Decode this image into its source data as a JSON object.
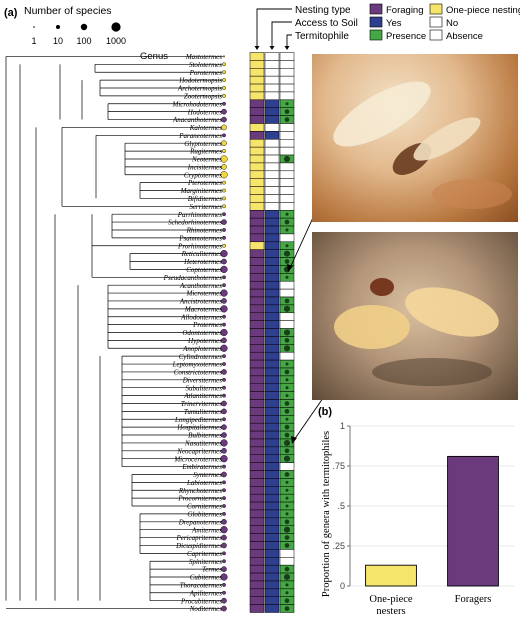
{
  "panel_a_label": "(a)",
  "panel_b_label": "(b)",
  "species_legend": {
    "title": "Number of species",
    "labels": [
      "1",
      "10",
      "100",
      "1000"
    ]
  },
  "genus_header": "Genus",
  "column_headers": [
    "Nesting type",
    "Access to Soil",
    "Termitophile"
  ],
  "key": {
    "foraging": "Foraging",
    "one_piece": "One-piece nesting",
    "yes": "Yes",
    "no": "No",
    "presence": "Presence",
    "absence": "Absence"
  },
  "colors": {
    "foraging": "#6b3a7d",
    "one_piece": "#f5e56b",
    "yes": "#2e3f8f",
    "no": "#ffffff",
    "presence": "#45a845",
    "absence": "#ffffff",
    "tip_purple": "#6b3a7d",
    "tip_yellow": "#f0d640"
  },
  "genera": [
    {
      "name": "Mastotermes",
      "nest": "one",
      "soil": "no",
      "termito": "absent",
      "size": 0
    },
    {
      "name": "Stolotermes",
      "nest": "one",
      "soil": "no",
      "termito": "absent",
      "size": 1
    },
    {
      "name": "Porotermes",
      "nest": "one",
      "soil": "no",
      "termito": "absent",
      "size": 1
    },
    {
      "name": "Hodotermopsis",
      "nest": "one",
      "soil": "no",
      "termito": "absent",
      "size": 1
    },
    {
      "name": "Archotermopsis",
      "nest": "one",
      "soil": "no",
      "termito": "absent",
      "size": 1
    },
    {
      "name": "Zootermopsis",
      "nest": "one",
      "soil": "no",
      "termito": "absent",
      "size": 1
    },
    {
      "name": "Microhodotermes",
      "nest": "for",
      "soil": "yes",
      "termito": "present",
      "size": 1
    },
    {
      "name": "Hodotermes",
      "nest": "for",
      "soil": "yes",
      "termito": "present",
      "size": 2
    },
    {
      "name": "Anacanthotermes",
      "nest": "for",
      "soil": "yes",
      "termito": "present",
      "size": 2
    },
    {
      "name": "Kalotermes",
      "nest": "one",
      "soil": "no",
      "termito": "absent",
      "size": 2
    },
    {
      "name": "Paraneotermes",
      "nest": "for",
      "soil": "yes",
      "termito": "absent",
      "size": 1
    },
    {
      "name": "Glyptotermes",
      "nest": "one",
      "soil": "no",
      "termito": "absent",
      "size": 2
    },
    {
      "name": "Rugitermes",
      "nest": "one",
      "soil": "no",
      "termito": "absent",
      "size": 1
    },
    {
      "name": "Neotermes",
      "nest": "one",
      "soil": "no",
      "termito": "present",
      "size": 3
    },
    {
      "name": "Incisitermes",
      "nest": "one",
      "soil": "no",
      "termito": "absent",
      "size": 2
    },
    {
      "name": "Cryptotermes",
      "nest": "one",
      "soil": "no",
      "termito": "absent",
      "size": 3
    },
    {
      "name": "Pterotermes",
      "nest": "one",
      "soil": "no",
      "termito": "absent",
      "size": 1
    },
    {
      "name": "Marginitermes",
      "nest": "one",
      "soil": "no",
      "termito": "absent",
      "size": 1
    },
    {
      "name": "Bifiditermes",
      "nest": "one",
      "soil": "no",
      "termito": "absent",
      "size": 1
    },
    {
      "name": "Serritermes",
      "nest": "one",
      "soil": "no",
      "termito": "absent",
      "size": 1
    },
    {
      "name": "Parrhinotermes",
      "nest": "for",
      "soil": "yes",
      "termito": "present",
      "size": 1
    },
    {
      "name": "Schedorhinotermes",
      "nest": "for",
      "soil": "yes",
      "termito": "present",
      "size": 2
    },
    {
      "name": "Rhinotermes",
      "nest": "for",
      "soil": "yes",
      "termito": "present",
      "size": 1
    },
    {
      "name": "Psammotermes",
      "nest": "for",
      "soil": "yes",
      "termito": "absent",
      "size": 1
    },
    {
      "name": "Prorhinotermes",
      "nest": "one",
      "soil": "yes",
      "termito": "present",
      "size": 1
    },
    {
      "name": "Reticulitermes",
      "nest": "for",
      "soil": "yes",
      "termito": "present",
      "size": 3
    },
    {
      "name": "Heterotermes",
      "nest": "for",
      "soil": "yes",
      "termito": "present",
      "size": 2
    },
    {
      "name": "Coptotermes",
      "nest": "for",
      "soil": "yes",
      "termito": "present",
      "size": 3
    },
    {
      "name": "Pseudacanthotermes",
      "nest": "for",
      "soil": "yes",
      "termito": "present",
      "size": 1
    },
    {
      "name": "Acanthotermes",
      "nest": "for",
      "soil": "yes",
      "termito": "absent",
      "size": 1
    },
    {
      "name": "Microtermes",
      "nest": "for",
      "soil": "yes",
      "termito": "absent",
      "size": 3
    },
    {
      "name": "Ancistrotermes",
      "nest": "for",
      "soil": "yes",
      "termito": "present",
      "size": 2
    },
    {
      "name": "Macrotermes",
      "nest": "for",
      "soil": "yes",
      "termito": "present",
      "size": 3
    },
    {
      "name": "Allodontermes",
      "nest": "for",
      "soil": "yes",
      "termito": "absent",
      "size": 1
    },
    {
      "name": "Protermes",
      "nest": "for",
      "soil": "yes",
      "termito": "absent",
      "size": 1
    },
    {
      "name": "Odontotermes",
      "nest": "for",
      "soil": "yes",
      "termito": "present",
      "size": 3
    },
    {
      "name": "Hypotermes",
      "nest": "for",
      "soil": "yes",
      "termito": "present",
      "size": 2
    },
    {
      "name": "Anoplotermes",
      "nest": "for",
      "soil": "yes",
      "termito": "present",
      "size": 3
    },
    {
      "name": "Cylindrotermes",
      "nest": "for",
      "soil": "yes",
      "termito": "absent",
      "size": 1
    },
    {
      "name": "Leptomyxotermes",
      "nest": "for",
      "soil": "yes",
      "termito": "present",
      "size": 1
    },
    {
      "name": "Constrictotermes",
      "nest": "for",
      "soil": "yes",
      "termito": "present",
      "size": 2
    },
    {
      "name": "Diversitermes",
      "nest": "for",
      "soil": "yes",
      "termito": "present",
      "size": 1
    },
    {
      "name": "Subulitermes",
      "nest": "for",
      "soil": "yes",
      "termito": "present",
      "size": 1
    },
    {
      "name": "Atlantitermes",
      "nest": "for",
      "soil": "yes",
      "termito": "present",
      "size": 1
    },
    {
      "name": "Trinervitermes",
      "nest": "for",
      "soil": "yes",
      "termito": "present",
      "size": 2
    },
    {
      "name": "Tumulitermes",
      "nest": "for",
      "soil": "yes",
      "termito": "present",
      "size": 2
    },
    {
      "name": "Longipeditermes",
      "nest": "for",
      "soil": "yes",
      "termito": "present",
      "size": 1
    },
    {
      "name": "Hospitalitermes",
      "nest": "for",
      "soil": "yes",
      "termito": "present",
      "size": 2
    },
    {
      "name": "Bulbitermes",
      "nest": "for",
      "soil": "yes",
      "termito": "present",
      "size": 2
    },
    {
      "name": "Nasutitermes",
      "nest": "for",
      "soil": "yes",
      "termito": "present",
      "size": 3
    },
    {
      "name": "Neocapritermes",
      "nest": "for",
      "soil": "yes",
      "termito": "present",
      "size": 2
    },
    {
      "name": "Microcerotermes",
      "nest": "for",
      "soil": "yes",
      "termito": "present",
      "size": 3
    },
    {
      "name": "Embiratermes",
      "nest": "for",
      "soil": "yes",
      "termito": "absent",
      "size": 1
    },
    {
      "name": "Syntermes",
      "nest": "for",
      "soil": "yes",
      "termito": "present",
      "size": 2
    },
    {
      "name": "Labiotermes",
      "nest": "for",
      "soil": "yes",
      "termito": "present",
      "size": 1
    },
    {
      "name": "Rhynchotermes",
      "nest": "for",
      "soil": "yes",
      "termito": "present",
      "size": 1
    },
    {
      "name": "Procornitermes",
      "nest": "for",
      "soil": "yes",
      "termito": "present",
      "size": 1
    },
    {
      "name": "Cornitermes",
      "nest": "for",
      "soil": "yes",
      "termito": "present",
      "size": 1
    },
    {
      "name": "Globitermes",
      "nest": "for",
      "soil": "yes",
      "termito": "present",
      "size": 1
    },
    {
      "name": "Drepanotermes",
      "nest": "for",
      "soil": "yes",
      "termito": "present",
      "size": 2
    },
    {
      "name": "Amitermes",
      "nest": "for",
      "soil": "yes",
      "termito": "present",
      "size": 3
    },
    {
      "name": "Pericapritermes",
      "nest": "for",
      "soil": "yes",
      "termito": "present",
      "size": 2
    },
    {
      "name": "Dicuspiditermes",
      "nest": "for",
      "soil": "yes",
      "termito": "present",
      "size": 2
    },
    {
      "name": "Capritermes",
      "nest": "for",
      "soil": "yes",
      "termito": "absent",
      "size": 1
    },
    {
      "name": "Spinitermes",
      "nest": "for",
      "soil": "yes",
      "termito": "absent",
      "size": 1
    },
    {
      "name": "Termes",
      "nest": "for",
      "soil": "yes",
      "termito": "present",
      "size": 2
    },
    {
      "name": "Cubitermes",
      "nest": "for",
      "soil": "yes",
      "termito": "present",
      "size": 3
    },
    {
      "name": "Thoracotermes",
      "nest": "for",
      "soil": "yes",
      "termito": "present",
      "size": 1
    },
    {
      "name": "Apilitermes",
      "nest": "for",
      "soil": "yes",
      "termito": "present",
      "size": 1
    },
    {
      "name": "Procubitermes",
      "nest": "for",
      "soil": "yes",
      "termito": "present",
      "size": 2
    },
    {
      "name": "Noditermes",
      "nest": "for",
      "soil": "yes",
      "termito": "present",
      "size": 2
    }
  ],
  "chart_data": {
    "type": "bar",
    "categories": [
      "One-piece nesters",
      "Foragers"
    ],
    "category_lines": [
      [
        "One-piece",
        "nesters"
      ],
      [
        "Foragers"
      ]
    ],
    "values": [
      0.13,
      0.81
    ],
    "bar_colors": [
      "#f5e56b",
      "#6b3a7d"
    ],
    "ylabel": "Proportion of genera with termitophiles",
    "ylim": [
      0,
      1
    ],
    "yticks": [
      0,
      0.25,
      0.5,
      0.75,
      1
    ],
    "ytick_labels": [
      "0",
      ".25",
      ".5",
      ".75",
      "1"
    ],
    "grid": true
  }
}
